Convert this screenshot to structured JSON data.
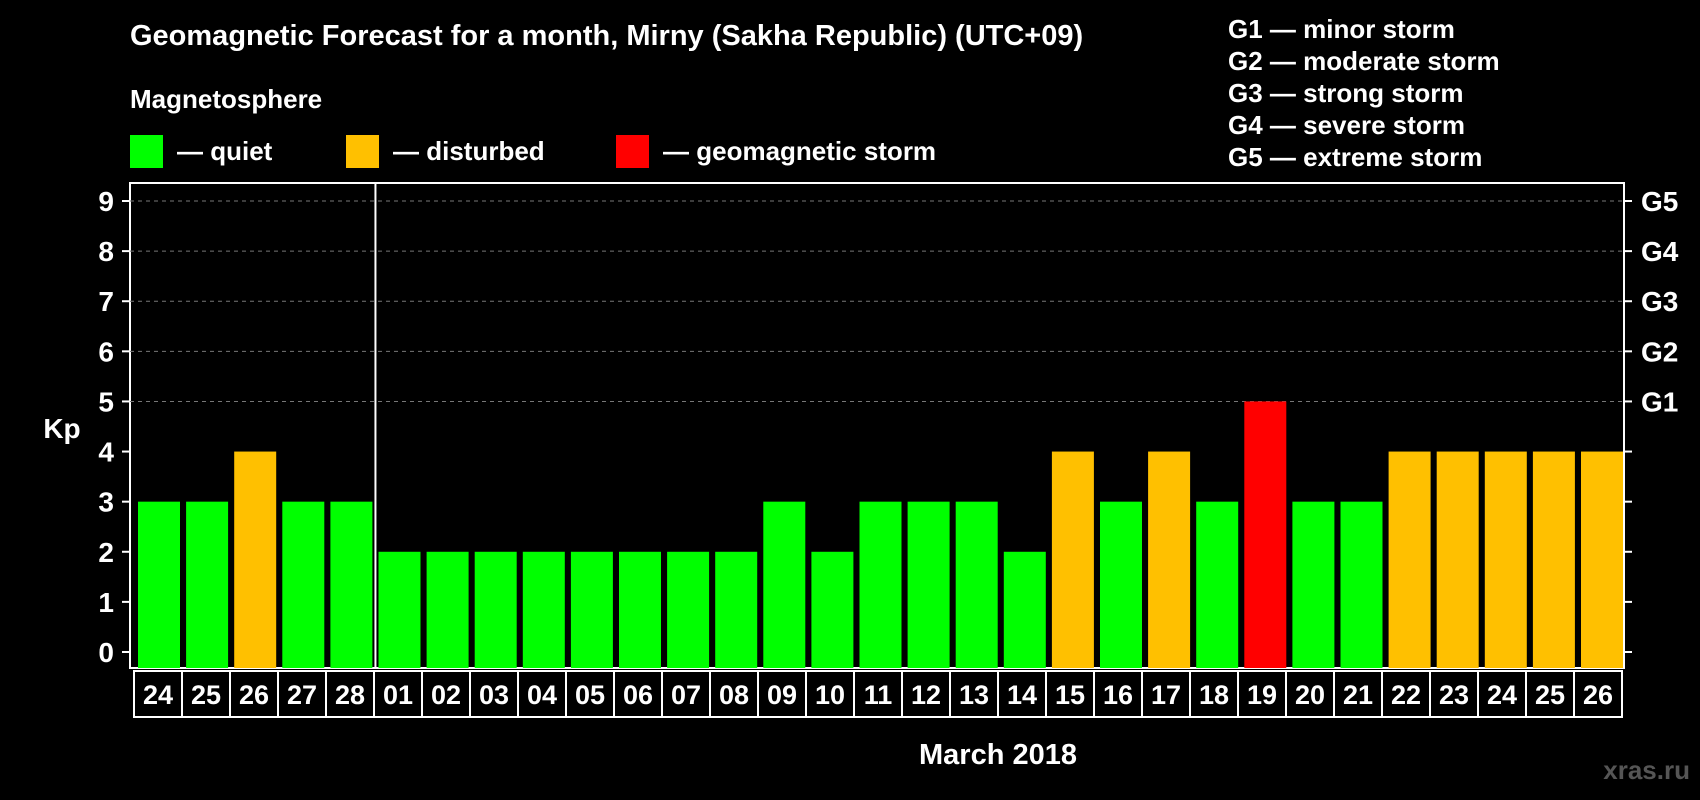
{
  "header": {
    "title": "Geomagnetic Forecast for a month, Mirny (Sakha Republic) (UTC+09)",
    "magnetosphere_label": "Magnetosphere"
  },
  "legend": [
    {
      "label": "— quiet",
      "color": "#00ff00"
    },
    {
      "label": "— disturbed",
      "color": "#ffc000"
    },
    {
      "label": "— geomagnetic storm",
      "color": "#ff0000"
    }
  ],
  "storm_scale": [
    "G1 — minor storm",
    "G2 — moderate storm",
    "G3 — strong storm",
    "G4 — severe storm",
    "G5 — extreme storm"
  ],
  "watermark": "xras.ru",
  "chart_data": {
    "type": "bar",
    "title": "Geomagnetic Forecast for a month, Mirny (Sakha Republic) (UTC+09)",
    "xlabel": "March 2018",
    "ylabel": "Kp",
    "ylim": [
      0,
      9
    ],
    "yticks": [
      0,
      1,
      2,
      3,
      4,
      5,
      6,
      7,
      8,
      9
    ],
    "right_axis_labels": [
      {
        "kp": 5,
        "label": "G1"
      },
      {
        "kp": 6,
        "label": "G2"
      },
      {
        "kp": 7,
        "label": "G3"
      },
      {
        "kp": 8,
        "label": "G4"
      },
      {
        "kp": 9,
        "label": "G5"
      }
    ],
    "grid": "dashed horizontal at Kp 5-9",
    "month_divider_after": "28",
    "categories": [
      "24",
      "25",
      "26",
      "27",
      "28",
      "01",
      "02",
      "03",
      "04",
      "05",
      "06",
      "07",
      "08",
      "09",
      "10",
      "11",
      "12",
      "13",
      "14",
      "15",
      "16",
      "17",
      "18",
      "19",
      "20",
      "21",
      "22",
      "23",
      "24",
      "25",
      "26"
    ],
    "values": [
      3,
      3,
      4,
      3,
      3,
      2,
      2,
      2,
      2,
      2,
      2,
      2,
      2,
      3,
      2,
      3,
      3,
      3,
      2,
      4,
      3,
      4,
      3,
      5,
      3,
      3,
      4,
      4,
      4,
      4,
      4
    ],
    "colors": {
      "quiet": "#00ff00",
      "disturbed": "#ffc000",
      "storm": "#ff0000"
    }
  }
}
